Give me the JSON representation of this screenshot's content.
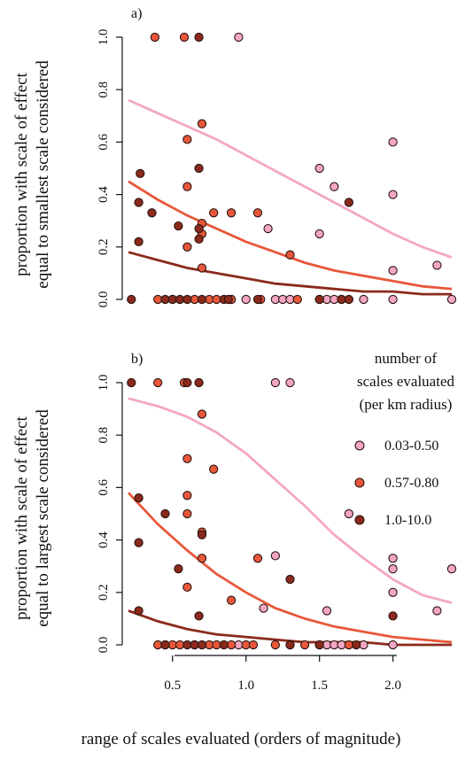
{
  "chart_data": [
    {
      "type": "scatter",
      "panel_label": "a)",
      "ylabel_line1": "proportion with scale of effect",
      "ylabel_line2": "equal to smallest scale considered",
      "xlim": [
        0.2,
        2.4
      ],
      "ylim": [
        0,
        1
      ],
      "y_ticks": [
        0.0,
        0.2,
        0.4,
        0.6,
        0.8,
        1.0
      ],
      "y_tick_labels": [
        "0.0",
        "0.2",
        "0.4",
        "0.6",
        "0.8",
        "1.0"
      ],
      "series": [
        {
          "name": "0.03-0.50",
          "color": "#f4a6c4",
          "points": [
            [
              0.95,
              1.0
            ],
            [
              1.5,
              0.5
            ],
            [
              1.6,
              0.43
            ],
            [
              1.5,
              0.25
            ],
            [
              1.15,
              0.27
            ],
            [
              2.0,
              0.6
            ],
            [
              2.0,
              0.4
            ],
            [
              2.0,
              0.11
            ],
            [
              2.3,
              0.13
            ],
            [
              0.9,
              0.0
            ],
            [
              1.0,
              0.0
            ],
            [
              1.2,
              0.0
            ],
            [
              1.25,
              0.0
            ],
            [
              1.3,
              0.0
            ],
            [
              1.55,
              0.0
            ],
            [
              1.6,
              0.0
            ],
            [
              1.8,
              0.0
            ],
            [
              2.0,
              0.0
            ],
            [
              2.4,
              0.0
            ]
          ],
          "curve": [
            [
              0.2,
              0.76
            ],
            [
              0.4,
              0.71
            ],
            [
              0.6,
              0.66
            ],
            [
              0.8,
              0.61
            ],
            [
              1.0,
              0.55
            ],
            [
              1.2,
              0.49
            ],
            [
              1.4,
              0.43
            ],
            [
              1.6,
              0.37
            ],
            [
              1.8,
              0.31
            ],
            [
              2.0,
              0.25
            ],
            [
              2.2,
              0.2
            ],
            [
              2.4,
              0.16
            ]
          ]
        },
        {
          "name": "0.57-0.80",
          "color": "#e8573a",
          "points": [
            [
              0.38,
              1.0
            ],
            [
              0.58,
              1.0
            ],
            [
              0.6,
              0.61
            ],
            [
              0.7,
              0.67
            ],
            [
              0.6,
              0.43
            ],
            [
              0.7,
              0.29
            ],
            [
              0.78,
              0.33
            ],
            [
              0.9,
              0.33
            ],
            [
              0.6,
              0.2
            ],
            [
              0.7,
              0.25
            ],
            [
              0.7,
              0.12
            ],
            [
              1.08,
              0.33
            ],
            [
              1.3,
              0.17
            ],
            [
              0.4,
              0.0
            ],
            [
              0.5,
              0.0
            ],
            [
              0.65,
              0.0
            ],
            [
              0.75,
              0.0
            ],
            [
              0.8,
              0.0
            ],
            [
              0.9,
              0.0
            ],
            [
              1.1,
              0.0
            ],
            [
              1.35,
              0.0
            ],
            [
              1.5,
              0.0
            ],
            [
              1.65,
              0.0
            ]
          ],
          "curve": [
            [
              0.2,
              0.45
            ],
            [
              0.4,
              0.38
            ],
            [
              0.6,
              0.32
            ],
            [
              0.8,
              0.27
            ],
            [
              1.0,
              0.22
            ],
            [
              1.2,
              0.18
            ],
            [
              1.4,
              0.14
            ],
            [
              1.6,
              0.11
            ],
            [
              1.8,
              0.09
            ],
            [
              2.0,
              0.07
            ],
            [
              2.2,
              0.05
            ],
            [
              2.4,
              0.04
            ]
          ]
        },
        {
          "name": "1.0-10.0",
          "color": "#8b2a1c",
          "points": [
            [
              0.68,
              1.0
            ],
            [
              0.28,
              0.48
            ],
            [
              0.27,
              0.37
            ],
            [
              0.36,
              0.33
            ],
            [
              0.27,
              0.22
            ],
            [
              0.54,
              0.28
            ],
            [
              0.68,
              0.5
            ],
            [
              0.68,
              0.27
            ],
            [
              0.68,
              0.23
            ],
            [
              1.7,
              0.37
            ],
            [
              0.22,
              0.0
            ],
            [
              0.45,
              0.0
            ],
            [
              0.5,
              0.0
            ],
            [
              0.55,
              0.0
            ],
            [
              0.6,
              0.0
            ],
            [
              0.7,
              0.0
            ],
            [
              0.85,
              0.0
            ],
            [
              0.88,
              0.0
            ],
            [
              1.08,
              0.0
            ],
            [
              1.5,
              0.0
            ],
            [
              1.65,
              0.0
            ],
            [
              1.7,
              0.0
            ]
          ],
          "curve": [
            [
              0.2,
              0.18
            ],
            [
              0.4,
              0.15
            ],
            [
              0.6,
              0.12
            ],
            [
              0.8,
              0.1
            ],
            [
              1.0,
              0.08
            ],
            [
              1.2,
              0.06
            ],
            [
              1.4,
              0.05
            ],
            [
              1.6,
              0.04
            ],
            [
              1.8,
              0.03
            ],
            [
              2.0,
              0.03
            ],
            [
              2.2,
              0.02
            ],
            [
              2.4,
              0.02
            ]
          ]
        }
      ]
    },
    {
      "type": "scatter",
      "panel_label": "b)",
      "ylabel_line1": "proportion with scale of effect",
      "ylabel_line2": "equal to largest scale considered",
      "xlabel": "range of scales evaluated (orders of magnitude)",
      "xlim": [
        0.2,
        2.4
      ],
      "ylim": [
        0,
        1
      ],
      "x_ticks": [
        0.5,
        1.0,
        1.5,
        2.0
      ],
      "x_tick_labels": [
        "0.5",
        "1.0",
        "1.5",
        "2.0"
      ],
      "y_ticks": [
        0.0,
        0.2,
        0.4,
        0.6,
        0.8,
        1.0
      ],
      "y_tick_labels": [
        "0.0",
        "0.2",
        "0.4",
        "0.6",
        "0.8",
        "1.0"
      ],
      "legend": {
        "title_lines": [
          "number of",
          "scales evaluated",
          "(per km radius)"
        ],
        "position": "right",
        "entries": [
          "0.03-0.50",
          "0.57-0.80",
          "1.0-10.0"
        ]
      },
      "series": [
        {
          "name": "0.03-0.50",
          "color": "#f4a6c4",
          "points": [
            [
              1.2,
              1.0
            ],
            [
              1.3,
              1.0
            ],
            [
              1.2,
              0.34
            ],
            [
              1.12,
              0.14
            ],
            [
              1.55,
              0.13
            ],
            [
              1.7,
              0.5
            ],
            [
              2.0,
              0.33
            ],
            [
              2.0,
              0.29
            ],
            [
              2.0,
              0.2
            ],
            [
              2.3,
              0.13
            ],
            [
              2.4,
              0.29
            ],
            [
              0.95,
              0.0
            ],
            [
              1.3,
              0.0
            ],
            [
              1.5,
              0.0
            ],
            [
              1.55,
              0.0
            ],
            [
              1.6,
              0.0
            ],
            [
              1.65,
              0.0
            ],
            [
              1.8,
              0.0
            ],
            [
              2.0,
              0.0
            ]
          ],
          "curve": [
            [
              0.2,
              0.94
            ],
            [
              0.4,
              0.91
            ],
            [
              0.6,
              0.87
            ],
            [
              0.8,
              0.81
            ],
            [
              1.0,
              0.73
            ],
            [
              1.2,
              0.63
            ],
            [
              1.4,
              0.53
            ],
            [
              1.6,
              0.42
            ],
            [
              1.8,
              0.33
            ],
            [
              2.0,
              0.25
            ],
            [
              2.2,
              0.19
            ],
            [
              2.4,
              0.16
            ]
          ]
        },
        {
          "name": "0.57-0.80",
          "color": "#e8573a",
          "points": [
            [
              0.4,
              1.0
            ],
            [
              0.58,
              1.0
            ],
            [
              0.7,
              0.88
            ],
            [
              0.6,
              0.71
            ],
            [
              0.78,
              0.67
            ],
            [
              0.6,
              0.57
            ],
            [
              0.6,
              0.5
            ],
            [
              0.7,
              0.43
            ],
            [
              0.7,
              0.33
            ],
            [
              0.6,
              0.22
            ],
            [
              0.9,
              0.17
            ],
            [
              1.08,
              0.33
            ],
            [
              1.2,
              0.0
            ],
            [
              0.4,
              0.0
            ],
            [
              0.45,
              0.0
            ],
            [
              0.5,
              0.0
            ],
            [
              0.55,
              0.0
            ],
            [
              0.65,
              0.0
            ],
            [
              0.75,
              0.0
            ],
            [
              0.8,
              0.0
            ],
            [
              0.9,
              0.0
            ],
            [
              1.0,
              0.0
            ],
            [
              1.05,
              0.0
            ],
            [
              1.4,
              0.0
            ],
            [
              1.7,
              0.0
            ]
          ],
          "curve": [
            [
              0.2,
              0.58
            ],
            [
              0.4,
              0.46
            ],
            [
              0.6,
              0.36
            ],
            [
              0.8,
              0.27
            ],
            [
              1.0,
              0.2
            ],
            [
              1.2,
              0.14
            ],
            [
              1.4,
              0.1
            ],
            [
              1.6,
              0.07
            ],
            [
              1.8,
              0.05
            ],
            [
              2.0,
              0.03
            ],
            [
              2.2,
              0.02
            ],
            [
              2.4,
              0.01
            ]
          ]
        },
        {
          "name": "1.0-10.0",
          "color": "#8b2a1c",
          "points": [
            [
              0.22,
              1.0
            ],
            [
              0.6,
              1.0
            ],
            [
              0.68,
              1.0
            ],
            [
              0.27,
              0.56
            ],
            [
              0.45,
              0.5
            ],
            [
              0.27,
              0.39
            ],
            [
              0.7,
              0.42
            ],
            [
              0.54,
              0.29
            ],
            [
              0.68,
              0.11
            ],
            [
              1.3,
              0.25
            ],
            [
              2.0,
              0.11
            ],
            [
              0.27,
              0.13
            ],
            [
              0.45,
              0.0
            ],
            [
              0.6,
              0.0
            ],
            [
              0.65,
              0.0
            ],
            [
              0.7,
              0.0
            ],
            [
              0.85,
              0.0
            ],
            [
              1.3,
              0.0
            ],
            [
              1.5,
              0.0
            ],
            [
              1.75,
              0.0
            ]
          ],
          "curve": [
            [
              0.2,
              0.13
            ],
            [
              0.4,
              0.09
            ],
            [
              0.6,
              0.06
            ],
            [
              0.8,
              0.04
            ],
            [
              1.0,
              0.03
            ],
            [
              1.2,
              0.02
            ],
            [
              1.4,
              0.01
            ],
            [
              1.6,
              0.01
            ],
            [
              1.8,
              0.01
            ],
            [
              2.0,
              0.0
            ],
            [
              2.2,
              0.0
            ],
            [
              2.4,
              0.0
            ]
          ]
        }
      ]
    }
  ]
}
